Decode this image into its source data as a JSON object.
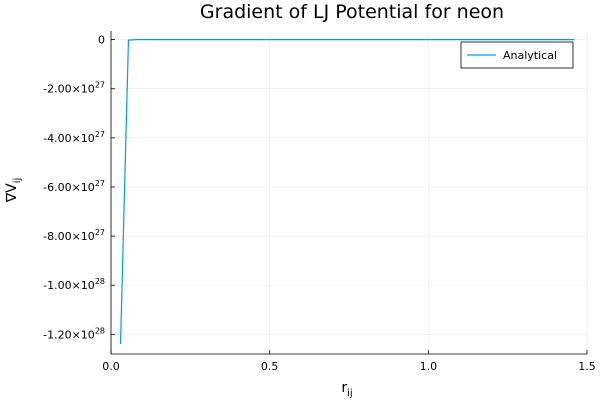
{
  "chart_data": {
    "type": "line",
    "title": "Gradient of LJ Potential for neon",
    "xlabel": {
      "base": "r",
      "sub": "ij"
    },
    "ylabel": {
      "base": "∇V",
      "sub": "ij"
    },
    "xlim": [
      0,
      1.5
    ],
    "ylim": [
      -1.28e+28,
      3.5e+26
    ],
    "grid": true,
    "legend_position": "top-right",
    "x_ticks": [
      {
        "value": 0.0,
        "label": "0.0"
      },
      {
        "value": 0.5,
        "label": "0.5"
      },
      {
        "value": 1.0,
        "label": "1.0"
      },
      {
        "value": 1.5,
        "label": "1.5"
      }
    ],
    "y_ticks": [
      {
        "value": 0,
        "label": "0",
        "exp": ""
      },
      {
        "value": -2e+27,
        "label": "-2.00×10",
        "exp": "27"
      },
      {
        "value": -4e+27,
        "label": "-4.00×10",
        "exp": "27"
      },
      {
        "value": -6e+27,
        "label": "-6.00×10",
        "exp": "27"
      },
      {
        "value": -8e+27,
        "label": "-8.00×10",
        "exp": "27"
      },
      {
        "value": -1e+28,
        "label": "-1.00×10",
        "exp": "28"
      },
      {
        "value": -1.2e+28,
        "label": "-1.20×10",
        "exp": "28"
      }
    ],
    "series": [
      {
        "name": "Analytical",
        "color": "#009af9",
        "x": [
          0.03,
          0.055,
          0.08,
          0.2,
          0.5,
          1.0,
          1.46
        ],
        "y": [
          -1.24e+28,
          -2e+25,
          0,
          0,
          0,
          0,
          0
        ]
      }
    ]
  }
}
